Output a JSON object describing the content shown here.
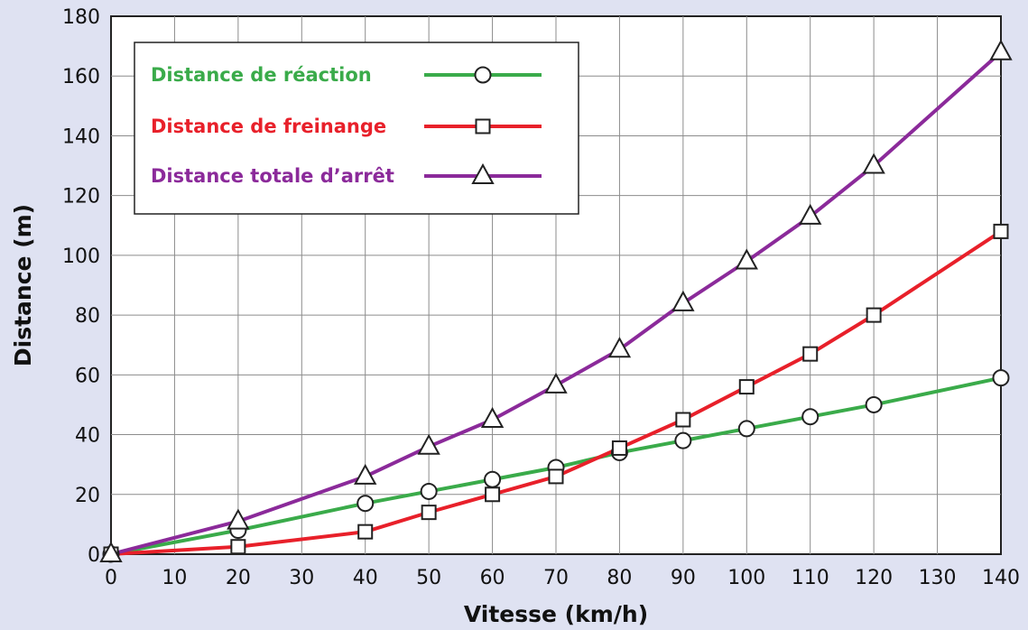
{
  "chart_data": {
    "type": "line",
    "xlabel": "Vitesse (km/h)",
    "ylabel": "Distance (m)",
    "xlim": [
      0,
      140
    ],
    "ylim": [
      0,
      180
    ],
    "x_ticks": [
      0,
      10,
      20,
      30,
      40,
      50,
      60,
      70,
      80,
      90,
      100,
      110,
      120,
      130,
      140
    ],
    "y_ticks": [
      0,
      20,
      40,
      60,
      80,
      100,
      120,
      140,
      160,
      180
    ],
    "grid": true,
    "legend_position": "top-left",
    "x": [
      0,
      20,
      40,
      50,
      60,
      70,
      80,
      90,
      100,
      110,
      120,
      140
    ],
    "series": [
      {
        "name": "Distance de réaction",
        "color": "#3aab4a",
        "marker": "circle",
        "values": [
          0,
          8,
          17,
          21,
          25,
          29,
          34,
          38,
          42,
          46,
          50,
          59
        ]
      },
      {
        "name": "Distance de freinange",
        "color": "#e8202a",
        "marker": "square",
        "values": [
          0,
          2.5,
          7.5,
          14,
          20,
          26,
          35.5,
          45,
          56,
          67,
          80,
          108
        ]
      },
      {
        "name": "Distance totale d’arrêt",
        "color": "#8b2a9a",
        "marker": "triangle",
        "values": [
          0,
          11,
          26,
          36,
          45,
          56.5,
          68.5,
          84,
          98,
          113,
          130,
          168
        ]
      }
    ]
  }
}
